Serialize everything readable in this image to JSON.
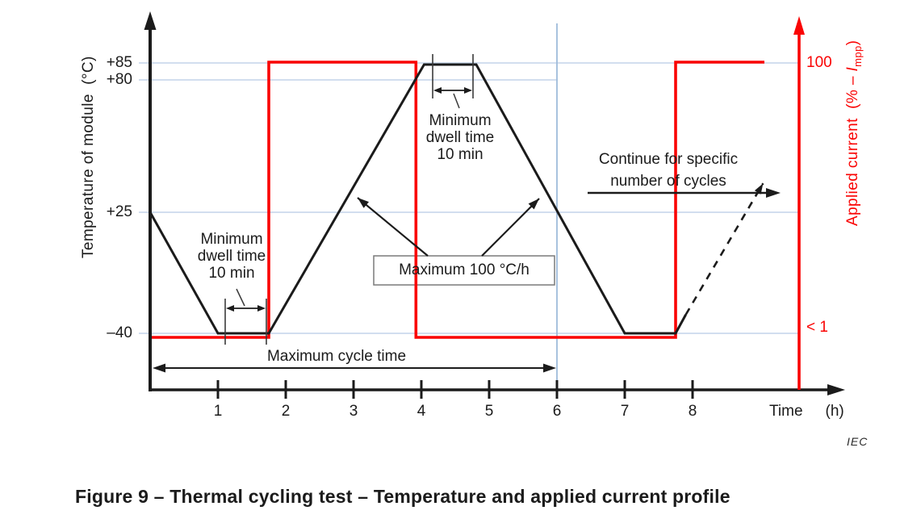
{
  "figure_caption": "Figure 9 – Thermal cycling test – Temperature and applied current profile",
  "source_mark": "IEC",
  "chart_data": {
    "type": "line",
    "title": "Thermal cycling test – Temperature and applied current profile",
    "x_axis": {
      "label": "Time",
      "unit": "(h)",
      "tick_labels": [
        "1",
        "2",
        "3",
        "4",
        "5",
        "6",
        "7",
        "8"
      ],
      "tick_values": [
        1,
        2,
        3,
        4,
        5,
        6,
        7,
        8
      ],
      "range_hours": [
        0,
        10.2
      ]
    },
    "y_axis_left": {
      "label": "Temperature of module  (°C)",
      "tick_labels": [
        "+85",
        "+80",
        "+25",
        "–40"
      ],
      "tick_values": [
        85,
        80,
        25,
        -40
      ],
      "unit": "°C"
    },
    "y_axis_right": {
      "label_prefix": "Applied current  (% – ",
      "label_italic": "I",
      "label_subscript": "mpp",
      "label_suffix": ")",
      "tick_labels": [
        "100",
        "< 1"
      ],
      "tick_values": [
        100,
        0
      ],
      "color": "#fa0404"
    },
    "series": [
      {
        "name": "module-temperature",
        "color": "#1b1b1b",
        "style": "solid",
        "axis": "left",
        "points": [
          [
            0,
            25
          ],
          [
            1,
            -40
          ],
          [
            1.75,
            -40
          ],
          [
            4.04,
            85
          ],
          [
            4.81,
            85
          ],
          [
            7,
            -40
          ],
          [
            7.75,
            -40
          ],
          [
            7.9,
            -30
          ]
        ]
      },
      {
        "name": "module-temperature-next-cycle",
        "color": "#1b1b1b",
        "style": "dashed",
        "axis": "left",
        "arrow_end": true,
        "points": [
          [
            7.9,
            -30
          ],
          [
            9.04,
            37
          ]
        ]
      },
      {
        "name": "applied-current",
        "color": "#fa0404",
        "style": "solid",
        "axis": "right",
        "points": [
          [
            0,
            0
          ],
          [
            1.75,
            0
          ],
          [
            1.75,
            100
          ],
          [
            3.92,
            100
          ],
          [
            3.92,
            0
          ],
          [
            7.75,
            0
          ],
          [
            7.75,
            100
          ],
          [
            9.06,
            100
          ]
        ]
      }
    ],
    "gridlines": {
      "horizontal_values": [
        85,
        80,
        25,
        -40
      ],
      "vertical_hours": [
        6
      ],
      "h_color": "#c3d4ea",
      "v_color": "#9fbbda"
    },
    "annotations": {
      "dwell_cold": {
        "lines": [
          "Minimum",
          "dwell time",
          "10 min"
        ],
        "dwell_span_hours": [
          1.107,
          1.714
        ]
      },
      "dwell_hot": {
        "lines": [
          "Minimum",
          "dwell time",
          "10 min"
        ],
        "dwell_span_hours": [
          4.167,
          4.762
        ]
      },
      "ramp_rate": {
        "text": "Maximum 100 °C/h",
        "boxed": true
      },
      "continue_cycles": {
        "lines": [
          "Continue for specific",
          "number of cycles"
        ]
      },
      "cycle_time": {
        "text": "Maximum cycle time",
        "span_hours": [
          0,
          6
        ]
      }
    }
  }
}
